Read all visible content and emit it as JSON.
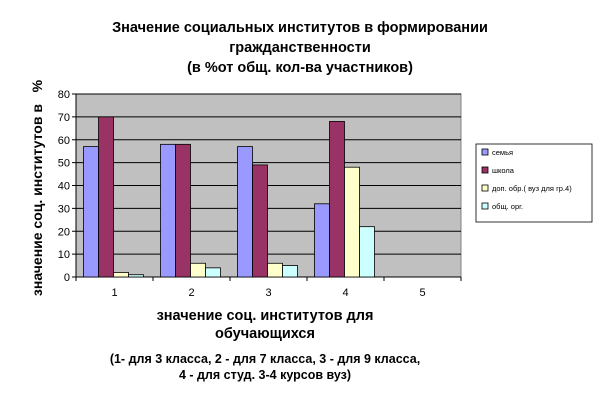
{
  "chart_data": {
    "type": "bar",
    "title_lines": [
      "Значение социальных институтов в формировании",
      "гражданственности",
      "(в %от общ. кол-ва участников)"
    ],
    "ylabel": "значение соц. институтов в   %",
    "xlabel_lines": [
      "значение соц. институтов для",
      "обучающихся"
    ],
    "note_lines": [
      "(1- для 3 класса, 2 - для 7 класса, 3 - для 9 класса,",
      "4 - для студ. 3-4 курсов вуз)"
    ],
    "categories": [
      "1",
      "2",
      "3",
      "4",
      "5"
    ],
    "ylim": [
      0,
      80
    ],
    "yticks": [
      0,
      10,
      20,
      30,
      40,
      50,
      60,
      70,
      80
    ],
    "grid": true,
    "legend_position": "right",
    "plot_background": "#c0c0c0",
    "series": [
      {
        "name": "семья",
        "color": "#9999ff",
        "values": [
          57,
          58,
          57,
          32,
          null
        ]
      },
      {
        "name": "школа",
        "color": "#993366",
        "values": [
          70,
          58,
          49,
          68,
          null
        ]
      },
      {
        "name": "доп. обр.( вуз для гр.4)",
        "color": "#ffffcc",
        "values": [
          2,
          6,
          6,
          48,
          null
        ]
      },
      {
        "name": "общ. орг.",
        "color": "#ccffff",
        "values": [
          1,
          4,
          5,
          22,
          null
        ]
      }
    ]
  }
}
